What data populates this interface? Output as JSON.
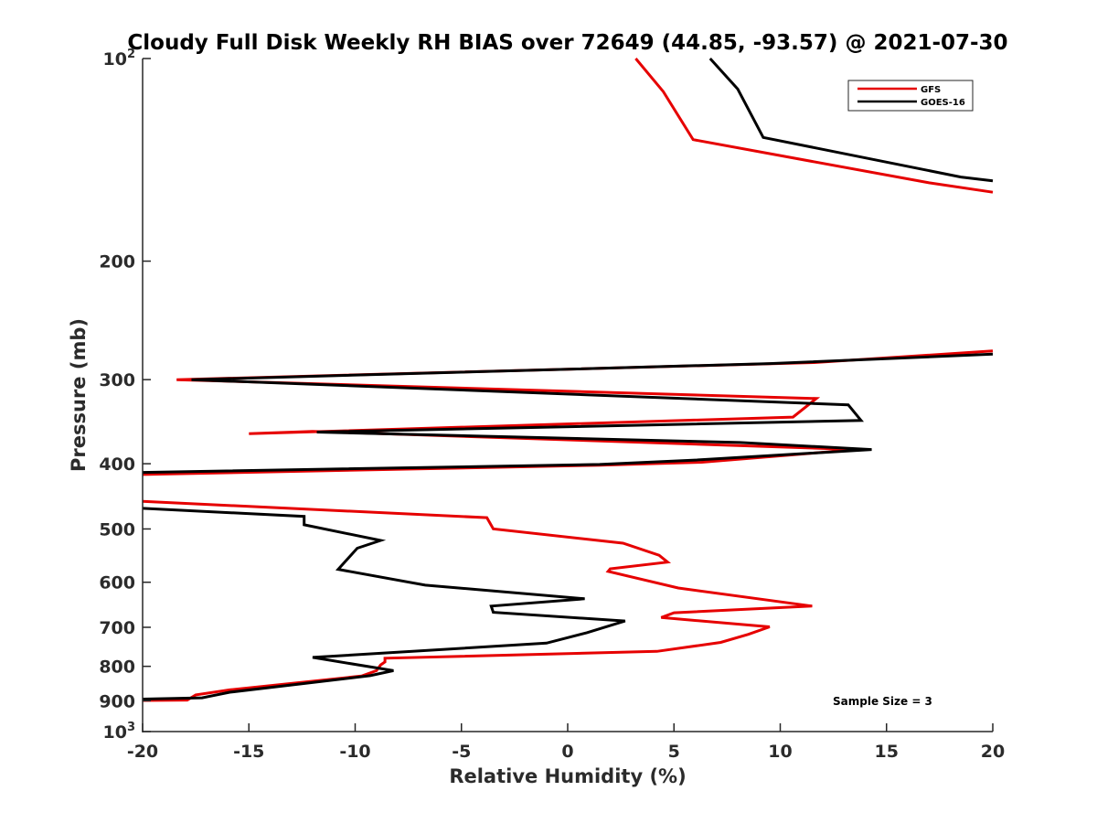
{
  "chart_data": {
    "type": "line",
    "title": "Cloudy Full Disk Weekly RH BIAS over 72649 (44.85, -93.57) @ 2021-07-30",
    "xlabel": "Relative Humidity (%)",
    "ylabel": "Pressure (mb)",
    "xlim": [
      -20,
      20
    ],
    "ylim": [
      100,
      1000
    ],
    "y_scale": "log",
    "y_reversed": true,
    "grid": false,
    "legend_position": "top-right",
    "x_ticks": [
      "-20",
      "-15",
      "-10",
      "-5",
      "0",
      "5",
      "10",
      "15",
      "20"
    ],
    "y_ticks": [
      {
        "value": 100,
        "base": "10",
        "exp": "2"
      },
      {
        "value": 200,
        "label": "200"
      },
      {
        "value": 300,
        "label": "300"
      },
      {
        "value": 400,
        "label": "400"
      },
      {
        "value": 500,
        "label": "500"
      },
      {
        "value": 600,
        "label": "600"
      },
      {
        "value": 700,
        "label": "700"
      },
      {
        "value": 800,
        "label": "800"
      },
      {
        "value": 900,
        "label": "900"
      },
      {
        "value": 1000,
        "base": "10",
        "exp": "3"
      }
    ],
    "annotation": "Sample Size = 3",
    "series": [
      {
        "name": "GFS",
        "color": "#e60000",
        "segments": [
          [
            [
              3.2,
              100
            ],
            [
              4.5,
              112
            ],
            [
              5.9,
              132
            ],
            [
              17,
              153
            ],
            [
              20,
              158
            ]
          ],
          [
            [
              20,
              272
            ],
            [
              11.6,
              283
            ],
            [
              -18.4,
              300
            ],
            [
              11.7,
              320
            ],
            [
              10.6,
              341
            ],
            [
              -15,
              361
            ],
            [
              -12,
              358
            ],
            [
              13.6,
              381
            ],
            [
              6.3,
              398
            ],
            [
              1.5,
              402
            ],
            [
              -20,
              415
            ]
          ],
          [
            [
              -20,
              455
            ],
            [
              -3.8,
              481
            ],
            [
              -3.5,
              500
            ],
            [
              2.6,
              525
            ],
            [
              4.3,
              547
            ],
            [
              4.7,
              560
            ],
            [
              2.0,
              573
            ],
            [
              1.9,
              578
            ],
            [
              5.2,
              612
            ],
            [
              11.5,
              651
            ],
            [
              5.0,
              666
            ],
            [
              4.4,
              677
            ],
            [
              9.5,
              699
            ],
            [
              8.5,
              717
            ],
            [
              7.2,
              737
            ],
            [
              4.2,
              760
            ],
            [
              -8.6,
              778
            ],
            [
              -8.6,
              788
            ],
            [
              -8.8,
              796
            ],
            [
              -9.0,
              812
            ],
            [
              -9.7,
              827
            ],
            [
              -15.9,
              867
            ],
            [
              -17.5,
              882
            ],
            [
              -17.9,
              898
            ],
            [
              -20,
              899
            ]
          ]
        ]
      },
      {
        "name": "GOES-16",
        "color": "#000000",
        "segments": [
          [
            [
              6.7,
              100
            ],
            [
              8.0,
              111
            ],
            [
              9.2,
              131
            ],
            [
              18.5,
              150
            ],
            [
              20,
              152
            ]
          ],
          [
            [
              20,
              275
            ],
            [
              9.5,
              284
            ],
            [
              -17.7,
              300
            ],
            [
              13.2,
              327
            ],
            [
              13.8,
              345
            ],
            [
              -11.8,
              359
            ],
            [
              8.1,
              372
            ],
            [
              14.3,
              381
            ],
            [
              6.0,
              395
            ],
            [
              1.5,
              401
            ],
            [
              -20,
              412
            ]
          ],
          [
            [
              -20,
              466
            ],
            [
              -12.4,
              479
            ],
            [
              -12.4,
              493
            ],
            [
              -8.8,
              520
            ],
            [
              -9.9,
              534
            ],
            [
              -10.8,
              574
            ],
            [
              -6.7,
              606
            ],
            [
              0.8,
              635
            ],
            [
              -3.6,
              651
            ],
            [
              -3.5,
              665
            ],
            [
              2.7,
              685
            ],
            [
              0.9,
              713
            ],
            [
              -1.0,
              739
            ],
            [
              -12.0,
              776
            ],
            [
              -8.2,
              812
            ],
            [
              -9.3,
              826
            ],
            [
              -15.9,
              874
            ],
            [
              -17.2,
              891
            ],
            [
              -20,
              895
            ]
          ]
        ]
      }
    ]
  }
}
